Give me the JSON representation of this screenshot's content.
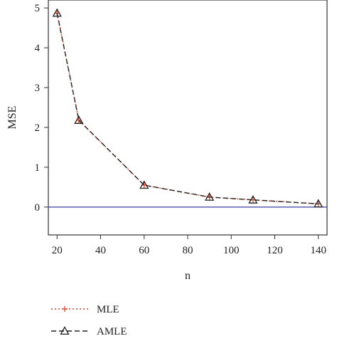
{
  "chart_data": {
    "type": "line",
    "xlabel": "n",
    "ylabel": "MSE",
    "x": [
      20,
      30,
      60,
      90,
      110,
      140
    ],
    "xlim": [
      16,
      144
    ],
    "ylim": [
      -0.7,
      5.2
    ],
    "xticks": [
      20,
      40,
      60,
      80,
      100,
      120,
      140
    ],
    "yticks": [
      0,
      1,
      2,
      3,
      4,
      5
    ],
    "reference_line": {
      "y": 0,
      "color": "#3a3aa0"
    },
    "grid": false,
    "legend_position": "bottom-left",
    "series": [
      {
        "name": "MLE",
        "values": [
          4.87,
          2.18,
          0.55,
          0.25,
          0.18,
          0.08
        ],
        "color": "#d9442b",
        "dash": "dotted",
        "marker": "plus"
      },
      {
        "name": "AMLE",
        "values": [
          4.87,
          2.18,
          0.55,
          0.25,
          0.18,
          0.08
        ],
        "color": "#222222",
        "dash": "dashed",
        "marker": "triangle"
      }
    ]
  }
}
